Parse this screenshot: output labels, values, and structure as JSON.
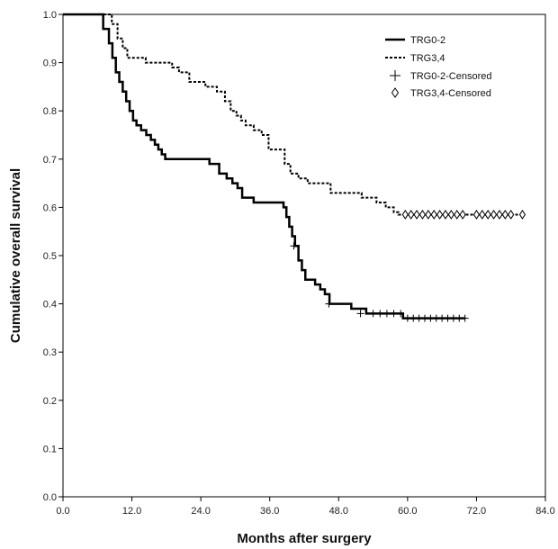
{
  "chart_data": {
    "type": "line",
    "xlabel": "Months after surgery",
    "ylabel": "Cumulative overall survival",
    "xlim": [
      0,
      84
    ],
    "ylim": [
      0,
      1
    ],
    "x_ticks": [
      0,
      12,
      24,
      36,
      48,
      60,
      72,
      84
    ],
    "x_tick_labels": [
      "0.0",
      "12.0",
      "24.0",
      "36.0",
      "48.0",
      "60.0",
      "72.0",
      "84.0"
    ],
    "y_ticks": [
      0,
      0.1,
      0.2,
      0.3,
      0.4,
      0.5,
      0.6,
      0.7,
      0.8,
      0.9,
      1.0
    ],
    "y_tick_labels": [
      "0.0",
      "0.1",
      "0.2",
      "0.3",
      "0.4",
      "0.5",
      "0.6",
      "0.7",
      "0.8",
      "0.9",
      "1.0"
    ],
    "grid": false,
    "legend_position": "top-right",
    "legend": [
      {
        "label": "TRG0-2",
        "style": "solid"
      },
      {
        "label": "TRG3,4",
        "style": "dashed"
      },
      {
        "label": "TRG0-2-Censored",
        "marker": "plus"
      },
      {
        "label": "TRG3,4-Censored",
        "marker": "diamond"
      }
    ],
    "series": [
      {
        "name": "TRG0-2",
        "style": "solid",
        "color": "#000000",
        "x": [
          0,
          7,
          8,
          8.6,
          9.2,
          9.8,
          10.4,
          11,
          11.6,
          12.2,
          12.8,
          13.6,
          14.5,
          15.3,
          16,
          16.6,
          17.2,
          17.8,
          18.4,
          25.5,
          27.2,
          28.5,
          29.5,
          30.4,
          31.2,
          33.2,
          38.4,
          38.9,
          39.4,
          39.9,
          40.4,
          41,
          41.6,
          42.2,
          43.9,
          44.8,
          45.6,
          46.4,
          50.2,
          52.8,
          58.5,
          59.2,
          59.8,
          70
        ],
        "y": [
          1.0,
          0.97,
          0.94,
          0.91,
          0.88,
          0.86,
          0.84,
          0.82,
          0.8,
          0.78,
          0.77,
          0.76,
          0.75,
          0.74,
          0.73,
          0.72,
          0.71,
          0.7,
          0.7,
          0.69,
          0.67,
          0.66,
          0.65,
          0.64,
          0.62,
          0.61,
          0.6,
          0.58,
          0.56,
          0.54,
          0.52,
          0.49,
          0.47,
          0.45,
          0.44,
          0.43,
          0.42,
          0.4,
          0.39,
          0.38,
          0.38,
          0.37,
          0.37,
          0.37
        ],
        "censored_x": [
          40.2,
          46.3,
          51.8,
          54.0,
          55.2,
          56.4,
          57.6,
          58.8,
          60.0,
          61.0,
          62.0,
          63.0,
          64.0,
          65.0,
          66.0,
          67.0,
          68.0,
          69.0,
          70.0
        ],
        "censored_y": [
          0.52,
          0.4,
          0.38,
          0.38,
          0.38,
          0.38,
          0.38,
          0.38,
          0.37,
          0.37,
          0.37,
          0.37,
          0.37,
          0.37,
          0.37,
          0.37,
          0.37,
          0.37,
          0.37
        ]
      },
      {
        "name": "TRG3,4",
        "style": "dashed",
        "color": "#000000",
        "x": [
          0,
          8.5,
          9.5,
          10.4,
          11.2,
          12.0,
          14.4,
          19.0,
          20.2,
          22.0,
          24.8,
          26.8,
          28.2,
          29.2,
          30.2,
          31.0,
          31.8,
          33.2,
          34.6,
          35.8,
          38.6,
          39.6,
          41.0,
          42.6,
          46.6,
          52.0,
          54.6,
          56.2,
          57.6,
          58.4,
          80
        ],
        "y": [
          1.0,
          0.98,
          0.95,
          0.93,
          0.91,
          0.91,
          0.9,
          0.89,
          0.88,
          0.86,
          0.85,
          0.84,
          0.82,
          0.8,
          0.79,
          0.78,
          0.77,
          0.76,
          0.75,
          0.72,
          0.69,
          0.67,
          0.66,
          0.65,
          0.63,
          0.62,
          0.61,
          0.6,
          0.59,
          0.585,
          0.585
        ],
        "censored_x": [
          59.6,
          60.6,
          61.6,
          62.6,
          63.6,
          64.6,
          65.6,
          66.6,
          67.6,
          68.6,
          69.6,
          72.0,
          73.0,
          74.0,
          75.0,
          76.0,
          77.0,
          78.0,
          80.0
        ],
        "censored_y": [
          0.585,
          0.585,
          0.585,
          0.585,
          0.585,
          0.585,
          0.585,
          0.585,
          0.585,
          0.585,
          0.585,
          0.585,
          0.585,
          0.585,
          0.585,
          0.585,
          0.585,
          0.585,
          0.585
        ]
      }
    ]
  }
}
